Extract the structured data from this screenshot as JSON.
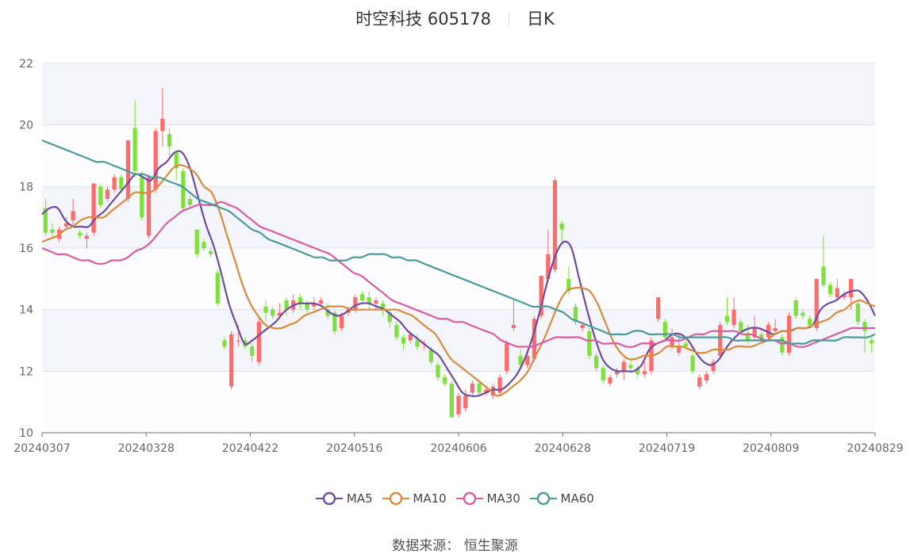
{
  "title": "时空科技 605178",
  "period": "日K",
  "source_label": "数据来源：",
  "source_name": "恒生聚源",
  "chart_data": {
    "type": "candlestick",
    "ylim": [
      10,
      22
    ],
    "y_ticks": [
      "22",
      "20",
      "18",
      "16",
      "14",
      "12",
      "10"
    ],
    "x_ticks": [
      "20240307",
      "20240328",
      "20240422",
      "20240516",
      "20240606",
      "20240628",
      "20240719",
      "20240809",
      "20240829"
    ],
    "up_color": "#ff6b6b",
    "down_color": "#7ee03a",
    "grid": true,
    "legend_position": "bottom",
    "candles": [
      {
        "o": 17.3,
        "c": 16.5,
        "h": 17.6,
        "l": 16.4
      },
      {
        "o": 16.6,
        "c": 16.5,
        "h": 16.8,
        "l": 16.3
      },
      {
        "o": 16.3,
        "c": 16.6,
        "h": 16.7,
        "l": 16.2
      },
      {
        "o": 16.7,
        "c": 16.8,
        "h": 17.0,
        "l": 16.6
      },
      {
        "o": 16.9,
        "c": 17.2,
        "h": 17.6,
        "l": 16.7
      },
      {
        "o": 16.5,
        "c": 16.4,
        "h": 16.6,
        "l": 16.3
      },
      {
        "o": 16.3,
        "c": 16.4,
        "h": 16.5,
        "l": 16.0
      },
      {
        "o": 16.5,
        "c": 18.1,
        "h": 18.1,
        "l": 16.4
      },
      {
        "o": 18.0,
        "c": 17.4,
        "h": 18.1,
        "l": 17.3
      },
      {
        "o": 17.6,
        "c": 17.9,
        "h": 18.0,
        "l": 17.5
      },
      {
        "o": 17.9,
        "c": 18.3,
        "h": 18.4,
        "l": 17.8
      },
      {
        "o": 18.3,
        "c": 17.9,
        "h": 18.4,
        "l": 17.8
      },
      {
        "o": 17.6,
        "c": 19.5,
        "h": 19.5,
        "l": 17.5
      },
      {
        "o": 19.9,
        "c": 18.5,
        "h": 20.8,
        "l": 18.3
      },
      {
        "o": 18.3,
        "c": 17.0,
        "h": 18.5,
        "l": 16.9
      },
      {
        "o": 16.4,
        "c": 18.3,
        "h": 18.4,
        "l": 16.3
      },
      {
        "o": 17.9,
        "c": 19.8,
        "h": 19.9,
        "l": 17.8
      },
      {
        "o": 19.8,
        "c": 20.2,
        "h": 21.2,
        "l": 19.3
      },
      {
        "o": 19.7,
        "c": 19.3,
        "h": 19.9,
        "l": 19.0
      },
      {
        "o": 19.1,
        "c": 18.6,
        "h": 19.2,
        "l": 18.2
      },
      {
        "o": 18.5,
        "c": 17.3,
        "h": 18.6,
        "l": 17.2
      },
      {
        "o": 17.6,
        "c": 17.4,
        "h": 17.7,
        "l": 17.3
      },
      {
        "o": 16.6,
        "c": 15.8,
        "h": 16.6,
        "l": 15.7
      },
      {
        "o": 16.2,
        "c": 16.0,
        "h": 16.3,
        "l": 15.9
      },
      {
        "o": 15.9,
        "c": 15.8,
        "h": 16.0,
        "l": 15.7
      },
      {
        "o": 15.2,
        "c": 14.2,
        "h": 15.3,
        "l": 14.1
      },
      {
        "o": 13.0,
        "c": 12.8,
        "h": 13.1,
        "l": 12.7
      },
      {
        "o": 11.5,
        "c": 13.2,
        "h": 13.3,
        "l": 11.4
      },
      {
        "o": 13.0,
        "c": 13.0,
        "h": 13.5,
        "l": 12.8
      },
      {
        "o": 13.0,
        "c": 12.8,
        "h": 13.1,
        "l": 12.7
      },
      {
        "o": 12.8,
        "c": 12.5,
        "h": 12.9,
        "l": 12.3
      },
      {
        "o": 12.3,
        "c": 13.6,
        "h": 13.7,
        "l": 12.2
      },
      {
        "o": 14.1,
        "c": 13.9,
        "h": 14.3,
        "l": 13.6
      },
      {
        "o": 14.0,
        "c": 13.8,
        "h": 14.1,
        "l": 13.7
      },
      {
        "o": 13.8,
        "c": 13.9,
        "h": 14.2,
        "l": 13.7
      },
      {
        "o": 14.3,
        "c": 14.0,
        "h": 14.4,
        "l": 13.8
      },
      {
        "o": 14.0,
        "c": 14.3,
        "h": 14.5,
        "l": 13.9
      },
      {
        "o": 14.4,
        "c": 14.2,
        "h": 14.5,
        "l": 14.0
      },
      {
        "o": 14.2,
        "c": 14.0,
        "h": 14.3,
        "l": 13.9
      },
      {
        "o": 14.1,
        "c": 14.2,
        "h": 14.4,
        "l": 14.0
      },
      {
        "o": 14.2,
        "c": 14.3,
        "h": 14.4,
        "l": 14.1
      },
      {
        "o": 14.0,
        "c": 13.8,
        "h": 14.2,
        "l": 13.7
      },
      {
        "o": 13.9,
        "c": 13.3,
        "h": 14.0,
        "l": 13.2
      },
      {
        "o": 13.4,
        "c": 13.8,
        "h": 13.9,
        "l": 13.3
      },
      {
        "o": 13.9,
        "c": 14.0,
        "h": 14.1,
        "l": 13.8
      },
      {
        "o": 14.0,
        "c": 14.4,
        "h": 14.5,
        "l": 13.9
      },
      {
        "o": 14.5,
        "c": 14.3,
        "h": 14.6,
        "l": 14.2
      },
      {
        "o": 14.4,
        "c": 14.2,
        "h": 14.6,
        "l": 14.0
      },
      {
        "o": 14.2,
        "c": 14.3,
        "h": 14.4,
        "l": 14.0
      },
      {
        "o": 14.2,
        "c": 14.0,
        "h": 14.3,
        "l": 13.8
      },
      {
        "o": 13.9,
        "c": 13.6,
        "h": 14.0,
        "l": 13.4
      },
      {
        "o": 13.5,
        "c": 13.1,
        "h": 13.6,
        "l": 13.0
      },
      {
        "o": 13.1,
        "c": 12.9,
        "h": 13.2,
        "l": 12.7
      },
      {
        "o": 13.0,
        "c": 13.2,
        "h": 13.3,
        "l": 12.9
      },
      {
        "o": 13.0,
        "c": 12.8,
        "h": 13.2,
        "l": 12.7
      },
      {
        "o": 12.9,
        "c": 12.9,
        "h": 13.0,
        "l": 12.7
      },
      {
        "o": 12.7,
        "c": 12.3,
        "h": 12.8,
        "l": 12.2
      },
      {
        "o": 12.2,
        "c": 11.8,
        "h": 12.3,
        "l": 11.7
      },
      {
        "o": 11.8,
        "c": 11.6,
        "h": 11.9,
        "l": 11.5
      },
      {
        "o": 11.6,
        "c": 10.5,
        "h": 11.7,
        "l": 10.5
      },
      {
        "o": 10.6,
        "c": 11.2,
        "h": 11.3,
        "l": 10.5
      },
      {
        "o": 10.8,
        "c": 11.2,
        "h": 11.4,
        "l": 10.7
      },
      {
        "o": 11.3,
        "c": 11.6,
        "h": 11.7,
        "l": 11.2
      },
      {
        "o": 11.6,
        "c": 11.3,
        "h": 11.7,
        "l": 11.2
      },
      {
        "o": 11.3,
        "c": 11.4,
        "h": 11.5,
        "l": 11.2
      },
      {
        "o": 11.2,
        "c": 11.5,
        "h": 11.6,
        "l": 11.1
      },
      {
        "o": 11.3,
        "c": 11.8,
        "h": 11.9,
        "l": 11.2
      },
      {
        "o": 12.0,
        "c": 12.9,
        "h": 13.0,
        "l": 11.9
      },
      {
        "o": 13.4,
        "c": 13.5,
        "h": 14.3,
        "l": 13.3
      },
      {
        "o": 12.5,
        "c": 12.2,
        "h": 12.7,
        "l": 12.1
      },
      {
        "o": 12.2,
        "c": 12.5,
        "h": 12.7,
        "l": 12.1
      },
      {
        "o": 12.4,
        "c": 13.7,
        "h": 13.8,
        "l": 12.3
      },
      {
        "o": 13.8,
        "c": 15.1,
        "h": 15.1,
        "l": 13.7
      },
      {
        "o": 15.0,
        "c": 15.8,
        "h": 16.6,
        "l": 14.9
      },
      {
        "o": 15.3,
        "c": 18.2,
        "h": 18.3,
        "l": 15.2
      },
      {
        "o": 16.8,
        "c": 16.6,
        "h": 16.9,
        "l": 16.2
      },
      {
        "o": 15.0,
        "c": 14.6,
        "h": 15.4,
        "l": 14.5
      },
      {
        "o": 14.1,
        "c": 13.6,
        "h": 14.2,
        "l": 13.5
      },
      {
        "o": 13.4,
        "c": 13.5,
        "h": 13.6,
        "l": 13.3
      },
      {
        "o": 13.3,
        "c": 12.5,
        "h": 13.4,
        "l": 12.4
      },
      {
        "o": 12.5,
        "c": 12.1,
        "h": 12.6,
        "l": 12.0
      },
      {
        "o": 12.1,
        "c": 11.7,
        "h": 12.2,
        "l": 11.6
      },
      {
        "o": 11.6,
        "c": 11.8,
        "h": 11.9,
        "l": 11.5
      },
      {
        "o": 11.9,
        "c": 12.0,
        "h": 12.1,
        "l": 11.8
      },
      {
        "o": 12.0,
        "c": 12.3,
        "h": 12.4,
        "l": 11.7
      },
      {
        "o": 12.2,
        "c": 12.1,
        "h": 12.4,
        "l": 12.0
      },
      {
        "o": 12.1,
        "c": 11.9,
        "h": 12.2,
        "l": 11.8
      },
      {
        "o": 11.9,
        "c": 12.0,
        "h": 12.3,
        "l": 11.8
      },
      {
        "o": 12.0,
        "c": 13.0,
        "h": 13.1,
        "l": 11.9
      },
      {
        "o": 13.7,
        "c": 14.4,
        "h": 14.4,
        "l": 13.6
      },
      {
        "o": 13.6,
        "c": 13.1,
        "h": 13.7,
        "l": 13.0
      },
      {
        "o": 12.8,
        "c": 13.1,
        "h": 13.4,
        "l": 12.7
      },
      {
        "o": 12.6,
        "c": 12.8,
        "h": 13.2,
        "l": 12.5
      },
      {
        "o": 12.9,
        "c": 12.8,
        "h": 13.0,
        "l": 12.7
      },
      {
        "o": 12.5,
        "c": 12.0,
        "h": 12.6,
        "l": 11.9
      },
      {
        "o": 11.5,
        "c": 11.8,
        "h": 11.9,
        "l": 11.4
      },
      {
        "o": 11.7,
        "c": 11.9,
        "h": 12.0,
        "l": 11.6
      },
      {
        "o": 12.0,
        "c": 12.3,
        "h": 12.4,
        "l": 11.9
      },
      {
        "o": 12.5,
        "c": 13.5,
        "h": 13.6,
        "l": 12.4
      },
      {
        "o": 13.8,
        "c": 13.6,
        "h": 14.4,
        "l": 13.5
      },
      {
        "o": 13.5,
        "c": 14.0,
        "h": 14.4,
        "l": 13.4
      },
      {
        "o": 13.6,
        "c": 13.3,
        "h": 13.7,
        "l": 13.2
      },
      {
        "o": 13.2,
        "c": 13.0,
        "h": 13.5,
        "l": 12.9
      },
      {
        "o": 13.1,
        "c": 13.4,
        "h": 13.8,
        "l": 13.0
      },
      {
        "o": 13.2,
        "c": 13.0,
        "h": 13.3,
        "l": 12.9
      },
      {
        "o": 13.1,
        "c": 13.5,
        "h": 13.6,
        "l": 13.0
      },
      {
        "o": 13.3,
        "c": 13.4,
        "h": 13.7,
        "l": 13.2
      },
      {
        "o": 13.1,
        "c": 12.6,
        "h": 13.2,
        "l": 12.5
      },
      {
        "o": 12.6,
        "c": 13.8,
        "h": 13.9,
        "l": 12.5
      },
      {
        "o": 14.3,
        "c": 13.8,
        "h": 14.4,
        "l": 13.7
      },
      {
        "o": 13.9,
        "c": 13.8,
        "h": 14.0,
        "l": 13.7
      },
      {
        "o": 13.7,
        "c": 13.5,
        "h": 13.8,
        "l": 13.4
      },
      {
        "o": 13.4,
        "c": 15.0,
        "h": 15.0,
        "l": 13.3
      },
      {
        "o": 15.4,
        "c": 14.8,
        "h": 16.4,
        "l": 14.7
      },
      {
        "o": 14.8,
        "c": 14.5,
        "h": 14.9,
        "l": 14.4
      },
      {
        "o": 14.4,
        "c": 14.7,
        "h": 15.0,
        "l": 14.3
      },
      {
        "o": 14.4,
        "c": 14.5,
        "h": 14.6,
        "l": 14.3
      },
      {
        "o": 14.4,
        "c": 15.0,
        "h": 15.0,
        "l": 14.0
      },
      {
        "o": 14.2,
        "c": 13.6,
        "h": 14.3,
        "l": 13.5
      },
      {
        "o": 13.6,
        "c": 13.3,
        "h": 13.7,
        "l": 12.6
      },
      {
        "o": 13.0,
        "c": 12.9,
        "h": 13.1,
        "l": 12.6
      }
    ],
    "series": [
      {
        "name": "MA5",
        "color": "#6e4aa0",
        "values": [
          17.1,
          17.3,
          17.3,
          16.9,
          16.7,
          16.7,
          16.7,
          17.0,
          17.2,
          17.5,
          17.8,
          18.1,
          18.4,
          18.3,
          18.2,
          18.6,
          18.8,
          19.1,
          19.1,
          18.6,
          17.7,
          16.8,
          16.1,
          15.2,
          14.2,
          13.5,
          12.9,
          13.0,
          13.2,
          13.4,
          13.6,
          13.9,
          14.1,
          14.2,
          14.2,
          14.2,
          14.1,
          13.9,
          13.8,
          13.9,
          14.1,
          14.2,
          14.2,
          14.1,
          14.0,
          13.8,
          13.6,
          13.3,
          13.1,
          12.9,
          12.7,
          12.5,
          12.1,
          11.7,
          11.3,
          11.2,
          11.2,
          11.3,
          11.4,
          11.4,
          11.6,
          11.9,
          12.4,
          13.1,
          14.0,
          15.0,
          15.8,
          16.2,
          16.0,
          15.0,
          14.0,
          13.1,
          12.4,
          12.1,
          12.0,
          12.0,
          12.0,
          12.2,
          12.7,
          12.9,
          13.0,
          13.2,
          13.2,
          13.0,
          12.6,
          12.3,
          12.2,
          12.4,
          12.8,
          13.1,
          13.3,
          13.4,
          13.4,
          13.3,
          13.2,
          13.3,
          13.3,
          13.4,
          13.4,
          13.5,
          14.0,
          14.2,
          14.3,
          14.5,
          14.6,
          14.6,
          14.3,
          13.8
        ]
      },
      {
        "name": "MA10",
        "color": "#d98a3a",
        "values": [
          16.2,
          16.3,
          16.4,
          16.6,
          16.7,
          16.9,
          17.0,
          17.0,
          17.0,
          17.2,
          17.4,
          17.6,
          17.8,
          17.8,
          17.8,
          18.0,
          18.3,
          18.6,
          18.7,
          18.6,
          18.4,
          18.0,
          17.8,
          17.2,
          16.4,
          15.6,
          14.8,
          14.2,
          13.8,
          13.5,
          13.4,
          13.4,
          13.5,
          13.6,
          13.8,
          13.9,
          14.0,
          14.1,
          14.1,
          14.1,
          14.0,
          14.0,
          14.0,
          14.0,
          14.0,
          14.0,
          14.0,
          13.9,
          13.8,
          13.6,
          13.4,
          13.2,
          12.8,
          12.4,
          12.2,
          12.0,
          11.8,
          11.6,
          11.4,
          11.2,
          11.3,
          11.5,
          11.7,
          12.0,
          12.5,
          13.0,
          13.6,
          14.2,
          14.6,
          14.7,
          14.7,
          14.6,
          14.2,
          13.6,
          13.0,
          12.6,
          12.4,
          12.4,
          12.5,
          12.5,
          12.6,
          12.8,
          12.8,
          12.8,
          12.7,
          12.6,
          12.6,
          12.7,
          12.7,
          12.7,
          12.8,
          12.8,
          12.8,
          12.9,
          13.0,
          13.2,
          13.3,
          13.3,
          13.4,
          13.4,
          13.5,
          13.6,
          13.7,
          13.9,
          14.0,
          14.2,
          14.3,
          14.2,
          14.1
        ]
      },
      {
        "name": "MA30",
        "color": "#d75ca0",
        "values": [
          16.0,
          15.9,
          15.8,
          15.8,
          15.7,
          15.6,
          15.6,
          15.5,
          15.5,
          15.6,
          15.6,
          15.7,
          15.9,
          16.0,
          16.2,
          16.5,
          16.8,
          17.0,
          17.2,
          17.3,
          17.4,
          17.4,
          17.4,
          17.5,
          17.4,
          17.3,
          17.1,
          16.9,
          16.7,
          16.6,
          16.5,
          16.4,
          16.3,
          16.2,
          16.1,
          16.0,
          15.9,
          15.8,
          15.6,
          15.4,
          15.2,
          15.1,
          14.9,
          14.7,
          14.5,
          14.3,
          14.2,
          14.1,
          14.0,
          13.9,
          13.8,
          13.7,
          13.7,
          13.6,
          13.6,
          13.5,
          13.4,
          13.3,
          13.2,
          13.0,
          12.9,
          12.8,
          12.8,
          12.8,
          12.9,
          13.0,
          13.1,
          13.1,
          13.1,
          13.1,
          13.0,
          13.0,
          12.9,
          12.9,
          12.9,
          12.8,
          12.8,
          12.9,
          12.9,
          12.9,
          13.0,
          13.0,
          13.0,
          13.1,
          13.2,
          13.2,
          13.3,
          13.3,
          13.3,
          13.3,
          13.2,
          13.2,
          13.1,
          13.0,
          13.0,
          12.9,
          12.9,
          12.8,
          12.8,
          12.9,
          13.0,
          13.1,
          13.2,
          13.3,
          13.4,
          13.4,
          13.4,
          13.4
        ]
      },
      {
        "name": "MA60",
        "color": "#4a9a9a",
        "values": [
          19.5,
          19.4,
          19.3,
          19.2,
          19.1,
          19.0,
          18.9,
          18.8,
          18.8,
          18.7,
          18.6,
          18.5,
          18.4,
          18.4,
          18.3,
          18.3,
          18.2,
          18.1,
          18.0,
          17.8,
          17.6,
          17.5,
          17.4,
          17.3,
          17.2,
          17.0,
          16.8,
          16.6,
          16.5,
          16.3,
          16.2,
          16.1,
          16.0,
          15.9,
          15.8,
          15.7,
          15.7,
          15.6,
          15.6,
          15.6,
          15.7,
          15.7,
          15.8,
          15.8,
          15.8,
          15.7,
          15.7,
          15.6,
          15.6,
          15.5,
          15.4,
          15.3,
          15.2,
          15.1,
          15.0,
          14.9,
          14.8,
          14.7,
          14.6,
          14.5,
          14.4,
          14.3,
          14.2,
          14.1,
          14.1,
          14.1,
          14.0,
          13.9,
          13.7,
          13.6,
          13.5,
          13.4,
          13.3,
          13.2,
          13.2,
          13.2,
          13.3,
          13.3,
          13.2,
          13.2,
          13.2,
          13.2,
          13.1,
          13.1,
          13.1,
          13.1,
          13.1,
          13.1,
          13.1,
          13.0,
          13.0,
          13.0,
          13.0,
          13.0,
          13.0,
          13.0,
          12.9,
          12.9,
          12.9,
          13.0,
          13.0,
          13.0,
          13.0,
          13.1,
          13.1,
          13.1,
          13.1,
          13.2
        ]
      }
    ]
  }
}
